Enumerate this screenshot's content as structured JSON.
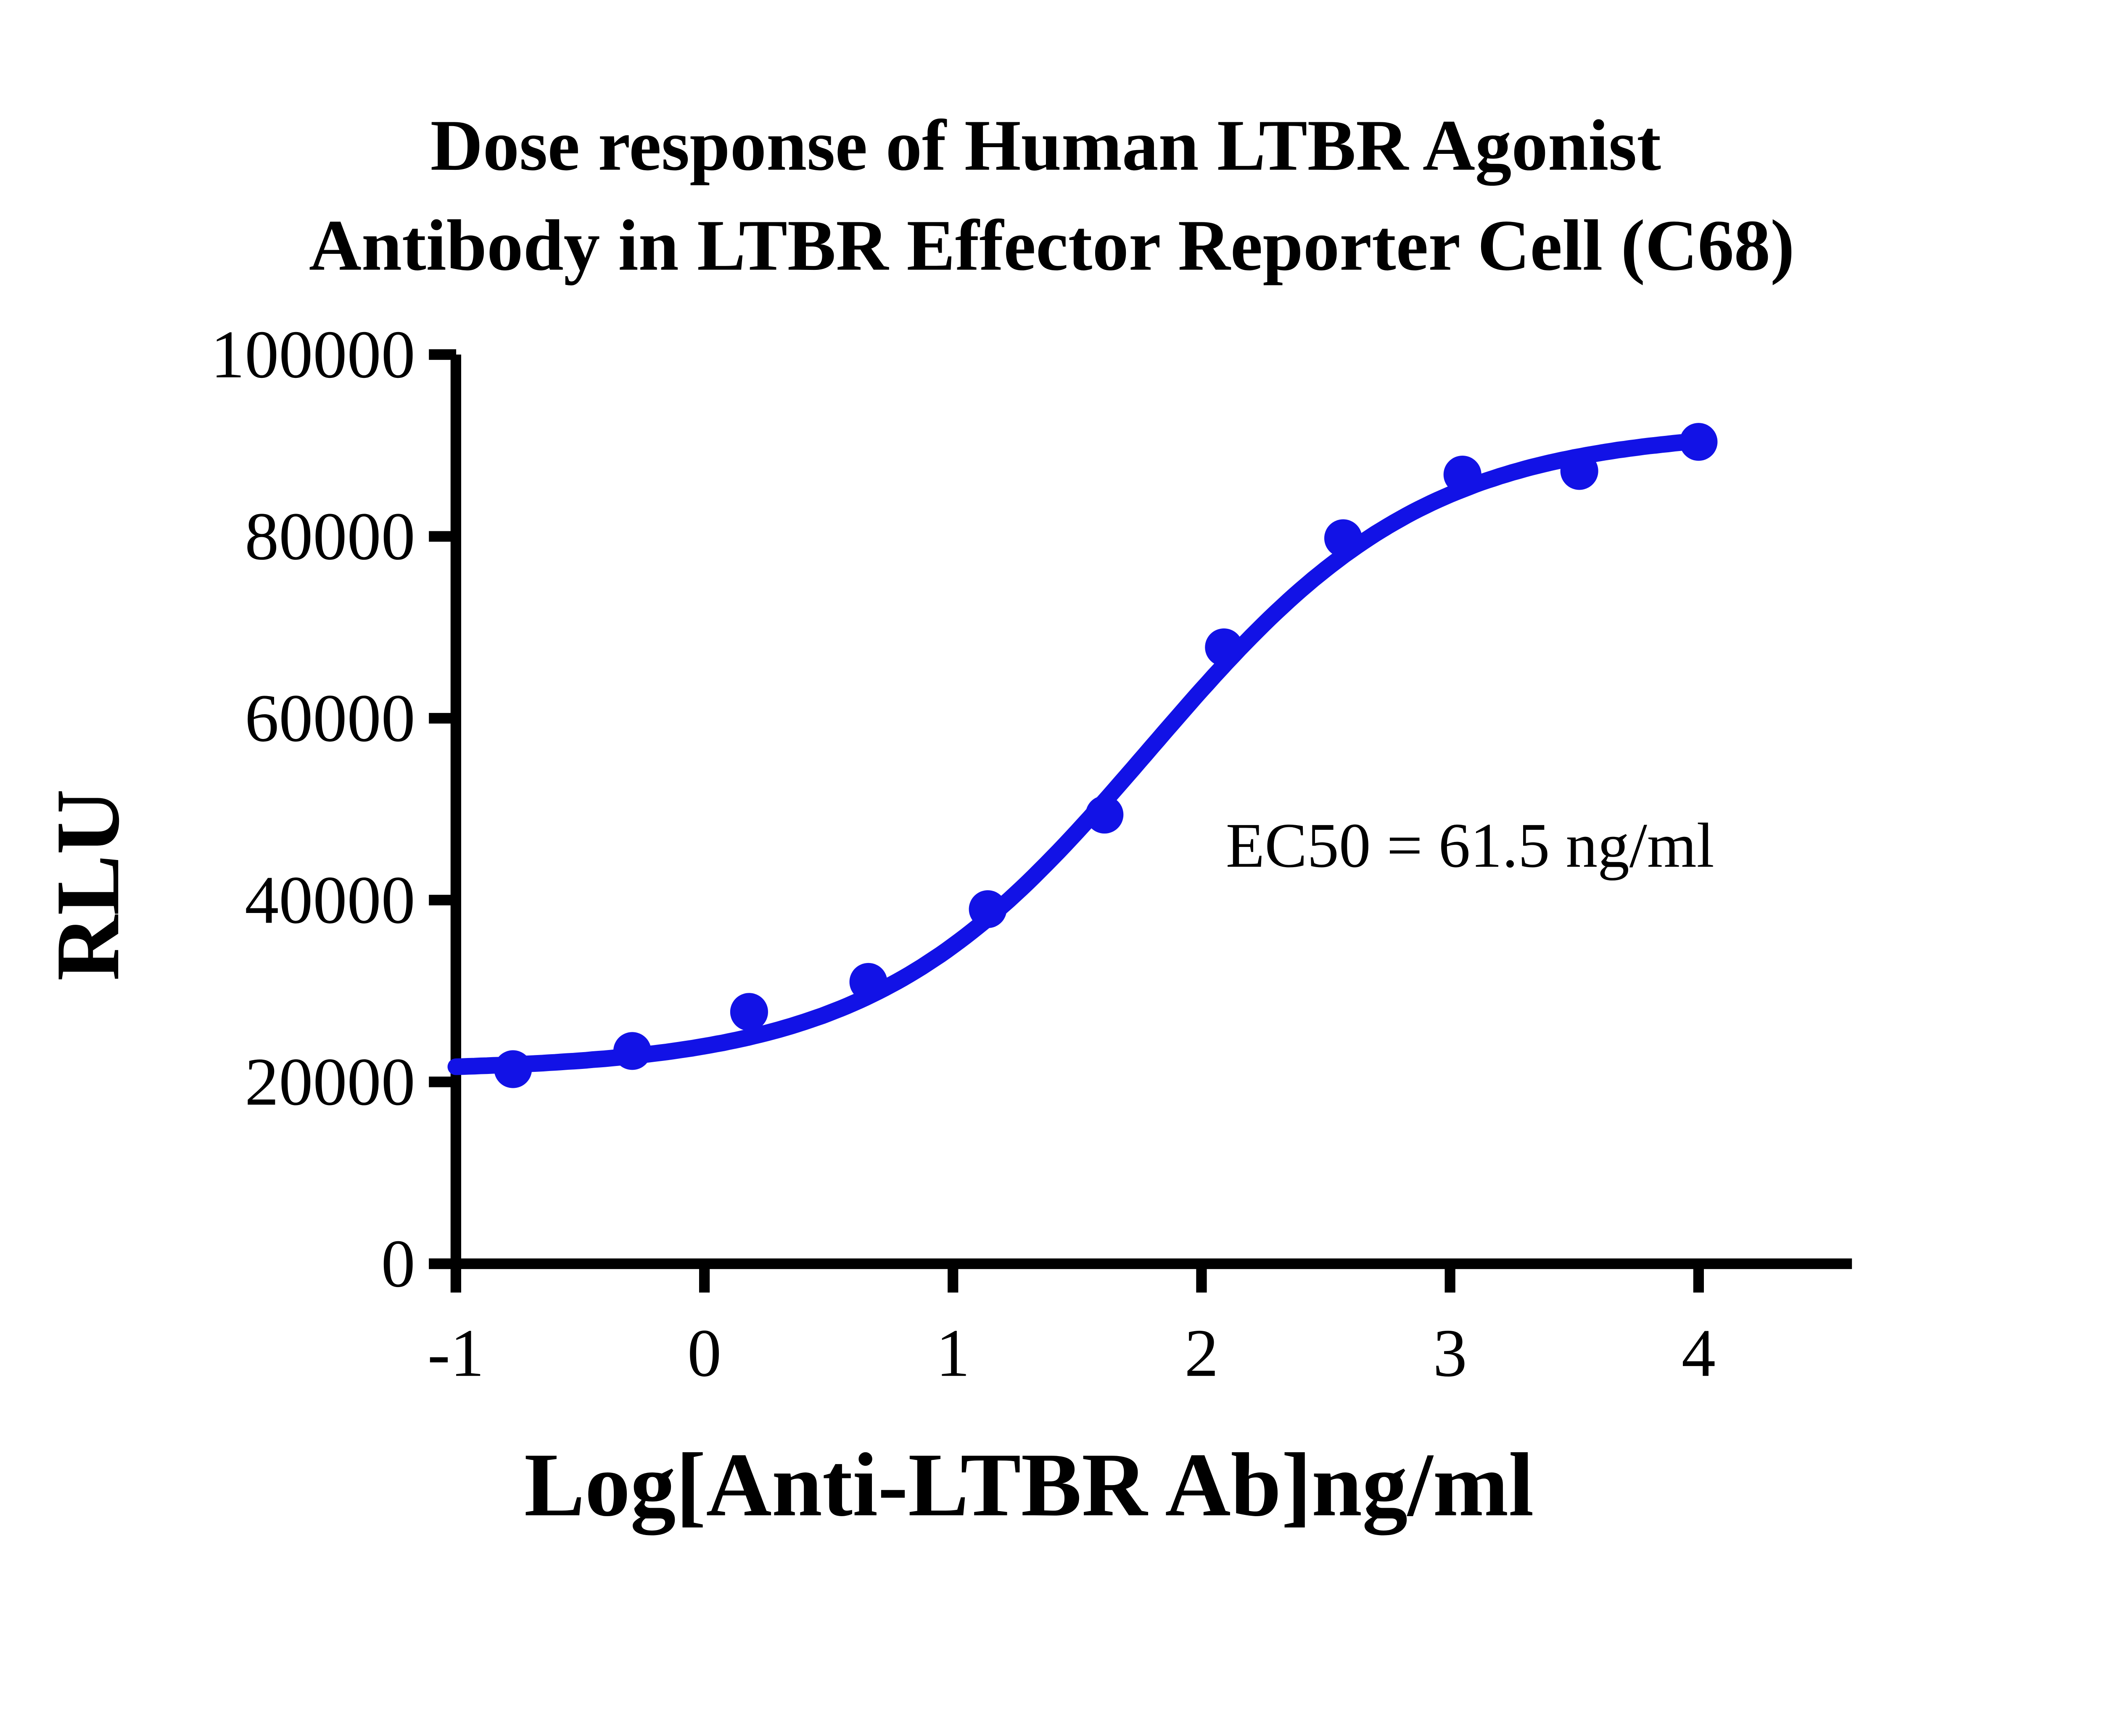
{
  "chart_data": {
    "type": "scatter",
    "title_line1": "Dose response of Human LTBR Agonist",
    "title_line2": "Antibody in LTBR Effector Reporter Cell (C68)",
    "xlabel": "Log[Anti-LTBR Ab]ng/ml",
    "ylabel": "RLU",
    "annotation": "EC50 = 61.5 ng/ml",
    "ec50_ng_ml": 61.5,
    "x_ticks": [
      -1,
      0,
      1,
      2,
      3,
      4
    ],
    "y_ticks": [
      0,
      20000,
      40000,
      60000,
      80000,
      100000
    ],
    "xlim": [
      -1,
      4.62
    ],
    "ylim": [
      0,
      100000
    ],
    "points": {
      "x": [
        -0.77,
        -0.29,
        0.18,
        0.66,
        1.14,
        1.61,
        2.09,
        2.57,
        3.05,
        3.52,
        4.0
      ],
      "y": [
        21400,
        23400,
        27700,
        31000,
        39000,
        49400,
        67800,
        79800,
        86800,
        87200,
        90400
      ]
    },
    "fit": {
      "model": "4PL",
      "bottom": 21200,
      "top": 91800,
      "log_ec50": 1.789,
      "hill": 0.78,
      "x_start": -1.0,
      "x_end": 4.03
    },
    "legend": "none",
    "grid": false,
    "colors": {
      "curve": "#1212e6",
      "points": "#1212e6",
      "axis": "#000000",
      "background": "#ffffff"
    }
  }
}
